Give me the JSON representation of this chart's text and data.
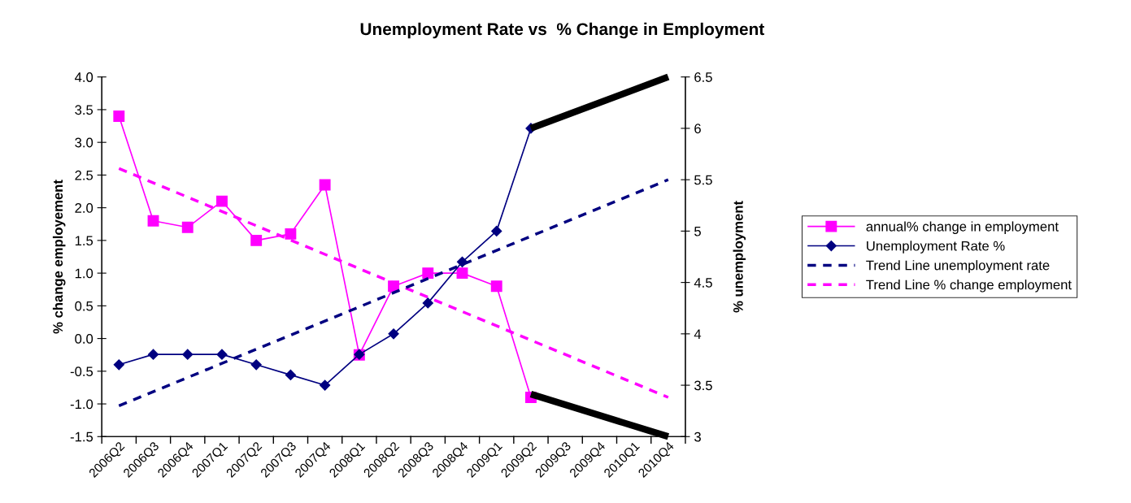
{
  "chart_data": {
    "type": "line",
    "title": "Unemployment Rate vs  % Change in Employment",
    "ylabel": "% change employement",
    "y2label": "% unemployment",
    "categories": [
      "2006Q2",
      "2006Q3",
      "2006Q4",
      "2007Q1",
      "2007Q2",
      "2007Q3",
      "2007Q4",
      "2008Q1",
      "2008Q2",
      "2008Q3",
      "2008Q4",
      "2009Q1",
      "2009Q2",
      "2009Q3",
      "2009Q4",
      "2010Q1",
      "2010Q4"
    ],
    "series": [
      {
        "name": "annual% change in employment",
        "color": "#ff00ff",
        "marker": "square",
        "line_style": "solid",
        "values": [
          3.4,
          1.8,
          1.7,
          2.1,
          1.5,
          1.6,
          2.35,
          -0.25,
          0.8,
          1.0,
          1.0,
          0.8,
          -0.9,
          null,
          null,
          null,
          null
        ]
      },
      {
        "name": "Unemployment Rate %",
        "color": "#000080",
        "marker": "diamond",
        "line_style": "solid",
        "axis": "y2",
        "values": [
          3.7,
          3.8,
          3.8,
          3.8,
          3.7,
          3.6,
          3.5,
          3.8,
          4.0,
          4.3,
          4.7,
          5.0,
          6.0,
          null,
          null,
          null,
          null
        ]
      },
      {
        "name": "Trend Line unemployment rate",
        "color": "#000080",
        "marker": "none",
        "line_style": "dashed",
        "axis": "y2",
        "values": [
          3.3,
          null,
          null,
          null,
          null,
          null,
          null,
          null,
          null,
          null,
          null,
          null,
          null,
          null,
          null,
          null,
          5.5
        ]
      },
      {
        "name": "Trend Line % change employment",
        "color": "#ff00ff",
        "marker": "none",
        "line_style": "dashed",
        "values": [
          2.6,
          null,
          null,
          null,
          null,
          null,
          null,
          null,
          null,
          null,
          null,
          null,
          null,
          null,
          null,
          null,
          -0.9
        ]
      },
      {
        "color": "#000000",
        "marker": "none",
        "line_style": "solid",
        "axis": "y2",
        "values": [
          null,
          null,
          null,
          null,
          null,
          null,
          null,
          null,
          null,
          null,
          null,
          null,
          6.0,
          null,
          null,
          null,
          6.5
        ]
      },
      {
        "color": "#000000",
        "marker": "none",
        "line_style": "solid",
        "values": [
          null,
          null,
          null,
          null,
          null,
          null,
          null,
          null,
          null,
          null,
          null,
          null,
          -0.85,
          null,
          null,
          null,
          -1.5
        ]
      }
    ],
    "ylim": [
      -1.5,
      4.0
    ],
    "yticks": [
      {
        "value": -1.5,
        "label": "-1.5"
      },
      {
        "value": -1.0,
        "label": "-1.0"
      },
      {
        "value": -0.5,
        "label": "-0.5"
      },
      {
        "value": 0,
        "label": "0.0"
      },
      {
        "value": 0.5,
        "label": "0.5"
      },
      {
        "value": 1.0,
        "label": "1.0"
      },
      {
        "value": 1.5,
        "label": "1.5"
      },
      {
        "value": 2.0,
        "label": "2.0"
      },
      {
        "value": 2.5,
        "label": "2.5"
      },
      {
        "value": 3.0,
        "label": "3.0"
      },
      {
        "value": 3.5,
        "label": "3.5"
      },
      {
        "value": 4.0,
        "label": "4.0"
      }
    ],
    "y2lim": [
      3,
      6.5
    ],
    "y2ticks": [
      3,
      3.5,
      4,
      4.5,
      5,
      5.5,
      6,
      6.5
    ],
    "grid": false,
    "legend": "right"
  }
}
